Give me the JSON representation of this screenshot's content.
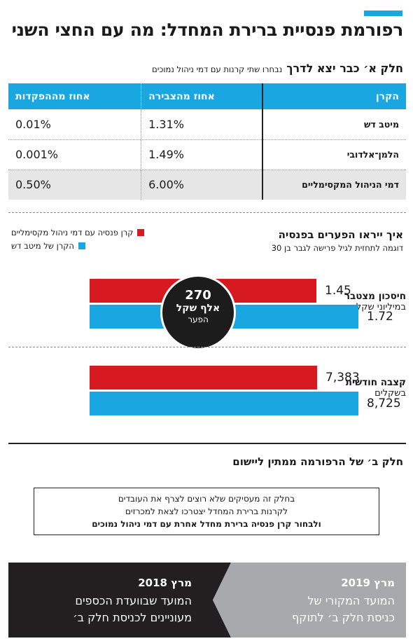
{
  "header": {
    "title": "רפורמת פנסיית ברירת המחדל: מה עם החצי השני"
  },
  "part_a": {
    "title": "חלק א׳ כבר יצא לדרך",
    "subtitle": "נבחרו שתי קרנות עם דמי ניהול נמוכים"
  },
  "table": {
    "headers": [
      "הקרן",
      "אחוז מהצבירה",
      "אחוז מההפקדות"
    ],
    "rows": [
      {
        "fund": "מיטב דש",
        "accumulation": "1.31%",
        "deposits": "0.01%"
      },
      {
        "fund": "הלמן־אלדובי",
        "accumulation": "1.49%",
        "deposits": "0.001%"
      },
      {
        "fund": "דמי הניהול המקסימליים",
        "accumulation": "6.00%",
        "deposits": "0.50%"
      }
    ]
  },
  "comparison": {
    "title": "איך ייראו הפערים בפנסיה",
    "subtitle": "דוגמה לתחזית לגיל פרישה לגבר בן 30",
    "circle": {
      "value": "270",
      "unit": "אלף שקל",
      "label": "הפער"
    }
  },
  "chart_data": {
    "type": "bar",
    "orientation": "horizontal",
    "categories": [
      "חיסכון מצטבר במיליוני שקלים",
      "קצבה חודשית בשקלים"
    ],
    "category_labels": [
      {
        "main": "חיסכון מצטבר",
        "unit": "במיליוני שקלים"
      },
      {
        "main": "קצבה חודשית",
        "unit": "בשקלים"
      }
    ],
    "series": [
      {
        "name": "קרן פנסיה עם דמי ניהול מקסימליים",
        "color": "#d71920",
        "values": [
          1.45,
          7383
        ],
        "labels": [
          "1.45",
          "7,383"
        ]
      },
      {
        "name": "הקרן של מיטב דש",
        "color": "#1aa6e1",
        "values": [
          1.72,
          8725
        ],
        "labels": [
          "1.72",
          "8,725"
        ]
      }
    ],
    "legend_placement": "top-left"
  },
  "part_b": {
    "title": "חלק ב׳ של הרפורמה ממתין ליישום",
    "note_lines": [
      "בחלק זה מעסיקים שלא רוצים לצרף את העובדים",
      "לקרנות ברירת המחדל יצטרכו לצאת למכרזים",
      "ולבחור קרן פנסיה ברירת מחדל אחרת עם דמי ניהול נמוכים"
    ]
  },
  "timeline": {
    "left": {
      "date": "מרץ 2018",
      "line1": "המועד שבוועדת הכספים",
      "line2": "מעוניינים לכניסת חלק ב׳",
      "color": "#231f20"
    },
    "right": {
      "date": "מרץ 2019",
      "line1": "המועד המקורי של",
      "line2": "כניסת חלק ב׳ לתוקף",
      "color": "#a7a9ac"
    }
  }
}
